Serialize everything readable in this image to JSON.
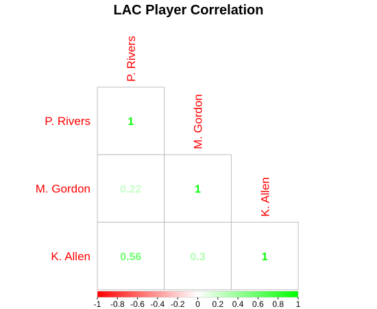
{
  "chart_data": {
    "type": "heatmap",
    "subtype": "correlation-matrix-lower-triangle",
    "title": "LAC Player Correlation",
    "labels": [
      "P. Rivers",
      "M. Gordon",
      "K. Allen"
    ],
    "matrix": [
      [
        1,
        null,
        null
      ],
      [
        0.22,
        1,
        null
      ],
      [
        0.56,
        0.3,
        1
      ]
    ],
    "value_labels": [
      [
        "1",
        "",
        ""
      ],
      [
        "0.22",
        "1",
        ""
      ],
      [
        "0.56",
        "0.3",
        "1"
      ]
    ],
    "color_scale": {
      "min": -1,
      "max": 1,
      "low_color": "#ff0000",
      "mid_color": "#ffffff",
      "high_color": "#00ff00"
    },
    "colorbar_ticks": [
      "-1",
      "-0.8",
      "-0.6",
      "-0.4",
      "-0.2",
      "0",
      "0.2",
      "0.4",
      "0.6",
      "0.8",
      "1"
    ],
    "colorbar_tick_values": [
      -1,
      -0.8,
      -0.6,
      -0.4,
      -0.2,
      0,
      0.2,
      0.4,
      0.6,
      0.8,
      1
    ],
    "label_color": "#ff0000",
    "grid_color": "#bebebe",
    "legend_position": "bottom"
  }
}
